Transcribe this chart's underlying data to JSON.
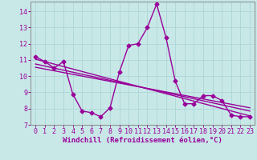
{
  "xlabel": "Windchill (Refroidissement éolien,°C)",
  "xlim": [
    -0.5,
    23.5
  ],
  "ylim": [
    7,
    14.6
  ],
  "yticks": [
    7,
    8,
    9,
    10,
    11,
    12,
    13,
    14
  ],
  "xticks": [
    0,
    1,
    2,
    3,
    4,
    5,
    6,
    7,
    8,
    9,
    10,
    11,
    12,
    13,
    14,
    15,
    16,
    17,
    18,
    19,
    20,
    21,
    22,
    23
  ],
  "bg_color": "#c8e8e8",
  "grid_color": "#aad4d4",
  "line_color": "#990099",
  "main_data_x": [
    0,
    1,
    2,
    3,
    4,
    5,
    6,
    7,
    8,
    9,
    10,
    11,
    12,
    13,
    14,
    15,
    16,
    17,
    18,
    19,
    20,
    21,
    22,
    23
  ],
  "main_data_y": [
    11.2,
    10.9,
    10.5,
    10.9,
    8.9,
    7.85,
    7.75,
    7.5,
    8.05,
    10.25,
    11.9,
    12.0,
    13.0,
    14.45,
    12.4,
    9.7,
    8.3,
    8.3,
    8.8,
    8.8,
    8.5,
    7.6,
    7.5,
    7.5
  ],
  "trend1_x": [
    0,
    23
  ],
  "trend1_y": [
    11.05,
    7.55
  ],
  "trend2_x": [
    0,
    23
  ],
  "trend2_y": [
    10.75,
    7.85
  ],
  "trend3_x": [
    0,
    23
  ],
  "trend3_y": [
    10.55,
    8.05
  ],
  "xlabel_fontsize": 6.5,
  "tick_fontsize": 6,
  "line_width": 1.0,
  "marker_size": 2.5
}
